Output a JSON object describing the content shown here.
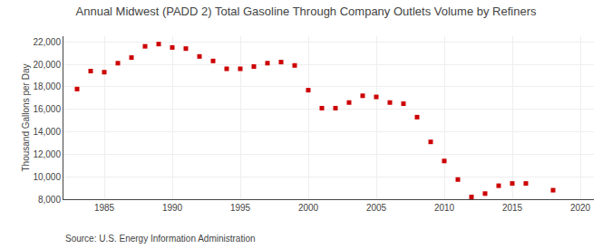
{
  "chart_data": {
    "type": "scatter",
    "title": "Annual Midwest (PADD 2) Total Gasoline Through Company Outlets Volume by Refiners",
    "ylabel": "Thousand Gallons per Day",
    "annotations": [
      "Source: U.S. Energy Information Administration"
    ],
    "color": "#cc0000",
    "marker": "square",
    "grid": true,
    "x": [
      1983,
      1984,
      1985,
      1986,
      1987,
      1988,
      1989,
      1990,
      1991,
      1992,
      1993,
      1994,
      1995,
      1996,
      1997,
      1998,
      1999,
      2000,
      2001,
      2002,
      2003,
      2004,
      2005,
      2006,
      2007,
      2008,
      2009,
      2010,
      2011,
      2012,
      2013,
      2014,
      2015,
      2016,
      2018
    ],
    "values": [
      17800,
      19400,
      19300,
      20100,
      20600,
      21600,
      21800,
      21500,
      21400,
      20700,
      20300,
      19600,
      19600,
      19800,
      20100,
      20200,
      19900,
      17700,
      16100,
      16100,
      16600,
      17200,
      17100,
      16600,
      16500,
      15300,
      13100,
      11400,
      9750,
      8200,
      8500,
      9200,
      9400,
      9400,
      8800
    ],
    "xlim": [
      1982,
      2021
    ],
    "ylim": [
      8000,
      22500
    ],
    "xticks": [
      1985,
      1990,
      1995,
      2000,
      2005,
      2010,
      2015,
      2020
    ],
    "yticks": [
      {
        "value": 8000,
        "label": "8,000"
      },
      {
        "value": 10000,
        "label": "10,000"
      },
      {
        "value": 12000,
        "label": "12,000"
      },
      {
        "value": 14000,
        "label": "14,000"
      },
      {
        "value": 16000,
        "label": "16,000"
      },
      {
        "value": 18000,
        "label": "18,000"
      },
      {
        "value": 20000,
        "label": "20,000"
      },
      {
        "value": 22000,
        "label": "22,000"
      }
    ]
  }
}
